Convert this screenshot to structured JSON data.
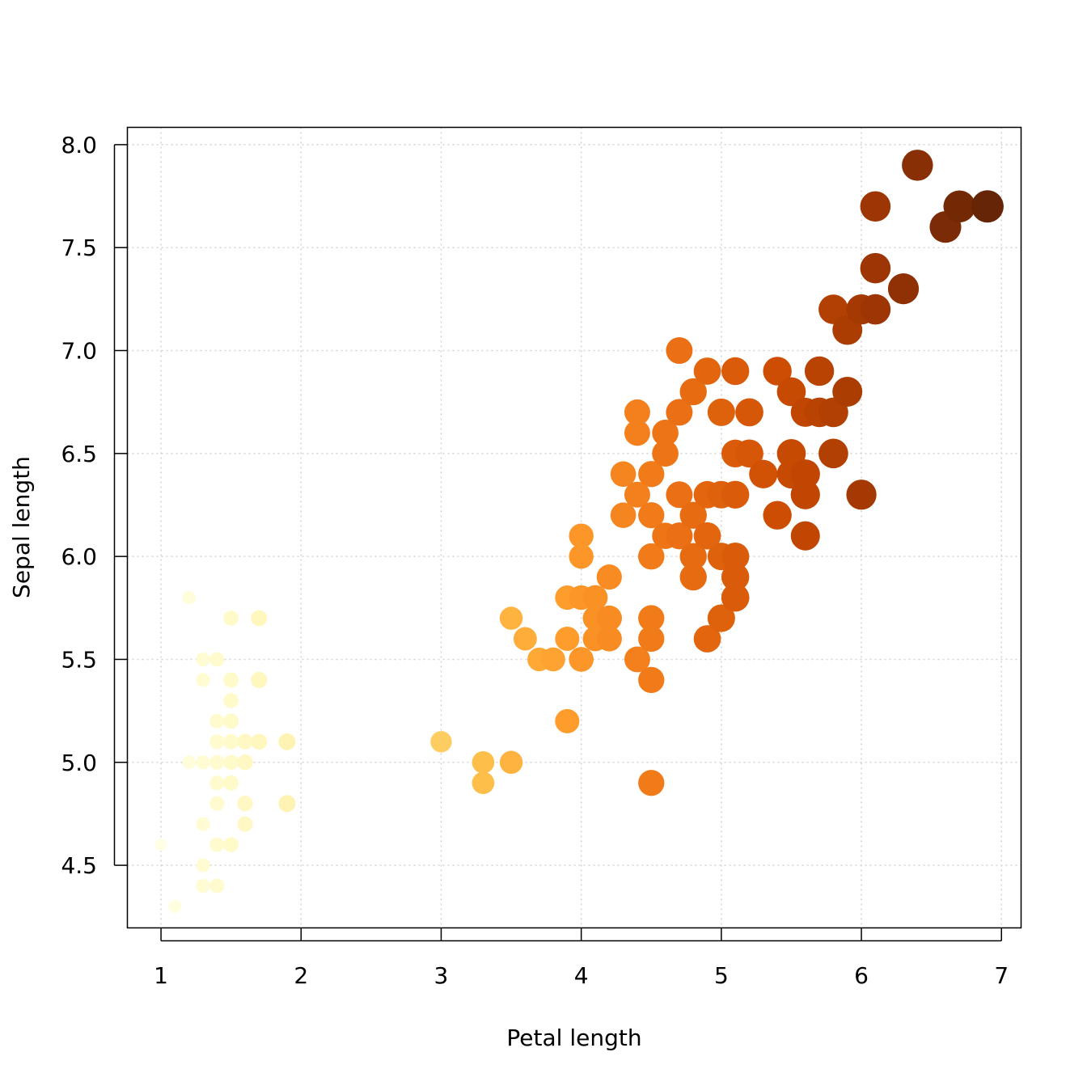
{
  "chart_data": {
    "type": "scatter",
    "title": "",
    "xlabel": "Petal length",
    "ylabel": "Sepal length",
    "xlim": [
      0.76,
      7.14
    ],
    "ylim": [
      4.196,
      8.084
    ],
    "grid": true,
    "x_ticks": [
      "1",
      "2",
      "3",
      "4",
      "5",
      "6",
      "7"
    ],
    "y_ticks": [
      "4.5",
      "5.0",
      "5.5",
      "6.0",
      "6.5",
      "7.0",
      "7.5",
      "8.0"
    ],
    "encoding": "point size and color increase with petal length",
    "palette": [
      "#FFFFE5",
      "#FFF7BC",
      "#FEE391",
      "#FEC44F",
      "#FE9929",
      "#EC7014",
      "#CC4C02",
      "#993404",
      "#662506"
    ],
    "x": [
      1.4,
      1.4,
      1.3,
      1.5,
      1.4,
      1.7,
      1.4,
      1.5,
      1.4,
      1.5,
      1.5,
      1.6,
      1.4,
      1.1,
      1.2,
      1.5,
      1.3,
      1.4,
      1.7,
      1.5,
      1.7,
      1.5,
      1.0,
      1.7,
      1.9,
      1.6,
      1.6,
      1.5,
      1.4,
      1.6,
      1.6,
      1.5,
      1.5,
      1.4,
      1.5,
      1.2,
      1.3,
      1.4,
      1.3,
      1.5,
      1.3,
      1.3,
      1.3,
      1.6,
      1.9,
      1.4,
      1.6,
      1.4,
      1.5,
      1.4,
      4.7,
      4.5,
      4.9,
      4.0,
      4.6,
      4.5,
      4.7,
      3.3,
      4.6,
      3.9,
      3.5,
      4.2,
      4.0,
      4.7,
      3.6,
      4.4,
      4.5,
      4.1,
      4.5,
      3.9,
      4.8,
      4.0,
      4.9,
      4.7,
      4.3,
      4.4,
      4.8,
      5.0,
      4.5,
      3.5,
      3.8,
      3.7,
      3.9,
      5.1,
      4.5,
      4.5,
      4.7,
      4.4,
      4.1,
      4.0,
      4.4,
      4.6,
      4.0,
      3.3,
      4.2,
      4.2,
      4.2,
      4.3,
      3.0,
      4.1,
      6.0,
      5.1,
      5.9,
      5.6,
      5.8,
      6.6,
      4.5,
      6.3,
      5.8,
      6.1,
      5.1,
      5.3,
      5.5,
      5.0,
      5.1,
      5.3,
      5.5,
      6.7,
      6.9,
      5.0,
      5.7,
      4.9,
      6.7,
      4.9,
      5.7,
      6.0,
      4.8,
      4.9,
      5.6,
      5.8,
      6.1,
      6.4,
      5.6,
      5.1,
      5.6,
      6.1,
      5.6,
      5.5,
      4.8,
      5.4,
      5.6,
      5.1,
      5.1,
      5.9,
      5.7,
      5.2,
      5.0,
      5.2,
      5.4,
      5.1
    ],
    "y": [
      5.1,
      4.9,
      4.7,
      4.6,
      5.0,
      5.4,
      4.6,
      5.0,
      4.4,
      4.9,
      5.4,
      4.8,
      4.8,
      4.3,
      5.8,
      5.7,
      5.4,
      5.1,
      5.7,
      5.1,
      5.4,
      5.1,
      4.6,
      5.1,
      4.8,
      5.0,
      5.0,
      5.2,
      5.2,
      4.7,
      4.8,
      5.4,
      5.2,
      5.5,
      4.9,
      5.0,
      5.5,
      4.9,
      4.4,
      5.1,
      5.0,
      4.5,
      4.4,
      5.0,
      5.1,
      4.8,
      5.1,
      4.6,
      5.3,
      5.0,
      7.0,
      6.4,
      6.9,
      5.5,
      6.5,
      5.7,
      6.3,
      4.9,
      6.6,
      5.2,
      5.0,
      5.9,
      6.0,
      6.1,
      5.6,
      6.7,
      5.6,
      5.8,
      6.2,
      5.6,
      5.9,
      6.1,
      6.3,
      6.1,
      6.4,
      6.6,
      6.8,
      6.7,
      6.0,
      5.7,
      5.5,
      5.5,
      5.8,
      6.0,
      5.4,
      6.0,
      6.7,
      6.3,
      5.6,
      5.5,
      5.5,
      6.1,
      5.8,
      5.0,
      5.6,
      5.7,
      5.7,
      6.2,
      5.1,
      5.7,
      6.3,
      5.8,
      7.1,
      6.3,
      6.5,
      7.6,
      4.9,
      7.3,
      6.7,
      7.2,
      6.5,
      6.4,
      6.8,
      5.7,
      5.8,
      6.4,
      6.5,
      7.7,
      7.7,
      6.0,
      6.9,
      5.6,
      7.7,
      6.3,
      6.7,
      7.2,
      6.2,
      6.1,
      6.4,
      7.2,
      7.4,
      7.9,
      6.4,
      6.3,
      6.1,
      7.7,
      6.3,
      6.4,
      6.0,
      6.9,
      6.7,
      6.9,
      5.8,
      6.8,
      6.7,
      6.7,
      6.3,
      6.5,
      6.2,
      5.9
    ]
  }
}
